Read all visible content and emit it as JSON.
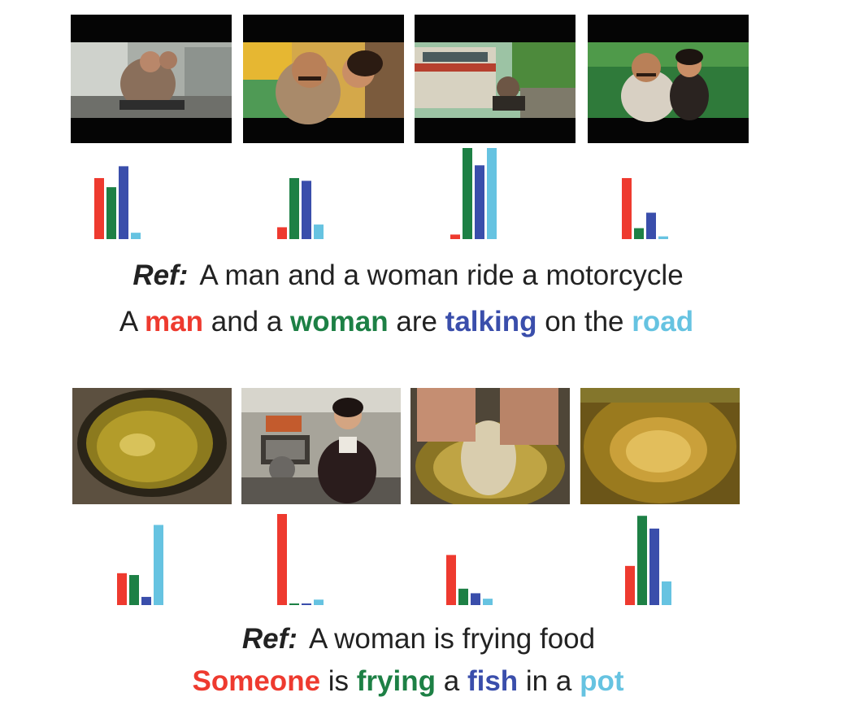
{
  "palette": {
    "red": "#ee3a2f",
    "green": "#1d8045",
    "blue": "#3a4eab",
    "cyan": "#66c3e1"
  },
  "examples": [
    {
      "ref_label": "Ref:",
      "ref_sentence": "A man and a woman ride a motorcycle",
      "generated": [
        {
          "text": "A ",
          "word": null
        },
        {
          "text": "man",
          "word": "red"
        },
        {
          "text": " and a ",
          "word": null
        },
        {
          "text": "woman",
          "word": "green"
        },
        {
          "text": " are ",
          "word": null
        },
        {
          "text": "talking",
          "word": "blue"
        },
        {
          "text": " on the ",
          "word": null
        },
        {
          "text": "road",
          "word": "cyan"
        }
      ],
      "frames": [
        {
          "scene": "man-and-woman-on-motorcycle-city-street"
        },
        {
          "scene": "man-and-woman-closeup"
        },
        {
          "scene": "motorcycle-beside-bus-on-road"
        },
        {
          "scene": "man-and-woman-riding-in-greenery"
        }
      ],
      "attention": [
        {
          "red": 0.67,
          "green": 0.57,
          "blue": 0.8,
          "cyan": 0.07
        },
        {
          "red": 0.13,
          "green": 0.67,
          "blue": 0.64,
          "cyan": 0.16
        },
        {
          "red": 0.05,
          "green": 1.0,
          "blue": 0.81,
          "cyan": 1.0
        },
        {
          "red": 0.67,
          "green": 0.12,
          "blue": 0.29,
          "cyan": 0.03
        }
      ]
    },
    {
      "ref_label": "Ref:",
      "ref_sentence": "A woman is frying food",
      "generated": [
        {
          "text": "Someone",
          "word": "red"
        },
        {
          "text": " is ",
          "word": null
        },
        {
          "text": "frying",
          "word": "green"
        },
        {
          "text": " a ",
          "word": null
        },
        {
          "text": "fish",
          "word": "blue"
        },
        {
          "text": " in a ",
          "word": null
        },
        {
          "text": "pot",
          "word": "cyan"
        }
      ],
      "frames": [
        {
          "scene": "oil-in-pot"
        },
        {
          "scene": "woman-cooking-in-kitchen"
        },
        {
          "scene": "hands-placing-fish-in-oil"
        },
        {
          "scene": "fish-frying-in-bubbling-oil"
        }
      ],
      "attention": [
        {
          "red": 0.35,
          "green": 0.33,
          "blue": 0.09,
          "cyan": 0.88
        },
        {
          "red": 1.0,
          "green": 0.01,
          "blue": 0.01,
          "cyan": 0.06
        },
        {
          "red": 0.55,
          "green": 0.18,
          "blue": 0.13,
          "cyan": 0.07
        },
        {
          "red": 0.43,
          "green": 0.98,
          "blue": 0.84,
          "cyan": 0.26
        }
      ]
    }
  ]
}
